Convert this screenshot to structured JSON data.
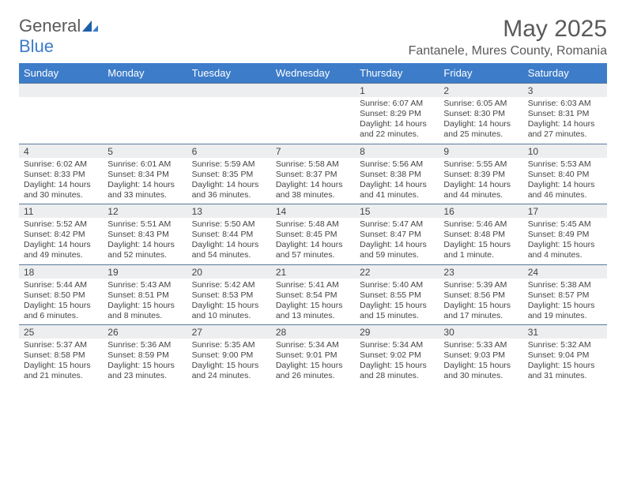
{
  "brand": {
    "name_part1": "General",
    "name_part2": "Blue"
  },
  "title": "May 2025",
  "location": "Fantanele, Mures County, Romania",
  "day_names": [
    "Sunday",
    "Monday",
    "Tuesday",
    "Wednesday",
    "Thursday",
    "Friday",
    "Saturday"
  ],
  "colors": {
    "header_bg": "#3d7cc9",
    "header_text": "#ffffff",
    "band_bg": "#eceef0",
    "border": "#5a7a9a",
    "text": "#444444",
    "logo_gray": "#5a5a5a",
    "logo_blue": "#3d7cc9"
  },
  "fonts": {
    "title_size_pt": 22,
    "location_size_pt": 12,
    "header_size_pt": 10,
    "body_size_pt": 8
  },
  "weeks": [
    [
      {
        "day": "",
        "sunrise": "",
        "sunset": "",
        "daylight": ""
      },
      {
        "day": "",
        "sunrise": "",
        "sunset": "",
        "daylight": ""
      },
      {
        "day": "",
        "sunrise": "",
        "sunset": "",
        "daylight": ""
      },
      {
        "day": "",
        "sunrise": "",
        "sunset": "",
        "daylight": ""
      },
      {
        "day": "1",
        "sunrise": "Sunrise: 6:07 AM",
        "sunset": "Sunset: 8:29 PM",
        "daylight": "Daylight: 14 hours and 22 minutes."
      },
      {
        "day": "2",
        "sunrise": "Sunrise: 6:05 AM",
        "sunset": "Sunset: 8:30 PM",
        "daylight": "Daylight: 14 hours and 25 minutes."
      },
      {
        "day": "3",
        "sunrise": "Sunrise: 6:03 AM",
        "sunset": "Sunset: 8:31 PM",
        "daylight": "Daylight: 14 hours and 27 minutes."
      }
    ],
    [
      {
        "day": "4",
        "sunrise": "Sunrise: 6:02 AM",
        "sunset": "Sunset: 8:33 PM",
        "daylight": "Daylight: 14 hours and 30 minutes."
      },
      {
        "day": "5",
        "sunrise": "Sunrise: 6:01 AM",
        "sunset": "Sunset: 8:34 PM",
        "daylight": "Daylight: 14 hours and 33 minutes."
      },
      {
        "day": "6",
        "sunrise": "Sunrise: 5:59 AM",
        "sunset": "Sunset: 8:35 PM",
        "daylight": "Daylight: 14 hours and 36 minutes."
      },
      {
        "day": "7",
        "sunrise": "Sunrise: 5:58 AM",
        "sunset": "Sunset: 8:37 PM",
        "daylight": "Daylight: 14 hours and 38 minutes."
      },
      {
        "day": "8",
        "sunrise": "Sunrise: 5:56 AM",
        "sunset": "Sunset: 8:38 PM",
        "daylight": "Daylight: 14 hours and 41 minutes."
      },
      {
        "day": "9",
        "sunrise": "Sunrise: 5:55 AM",
        "sunset": "Sunset: 8:39 PM",
        "daylight": "Daylight: 14 hours and 44 minutes."
      },
      {
        "day": "10",
        "sunrise": "Sunrise: 5:53 AM",
        "sunset": "Sunset: 8:40 PM",
        "daylight": "Daylight: 14 hours and 46 minutes."
      }
    ],
    [
      {
        "day": "11",
        "sunrise": "Sunrise: 5:52 AM",
        "sunset": "Sunset: 8:42 PM",
        "daylight": "Daylight: 14 hours and 49 minutes."
      },
      {
        "day": "12",
        "sunrise": "Sunrise: 5:51 AM",
        "sunset": "Sunset: 8:43 PM",
        "daylight": "Daylight: 14 hours and 52 minutes."
      },
      {
        "day": "13",
        "sunrise": "Sunrise: 5:50 AM",
        "sunset": "Sunset: 8:44 PM",
        "daylight": "Daylight: 14 hours and 54 minutes."
      },
      {
        "day": "14",
        "sunrise": "Sunrise: 5:48 AM",
        "sunset": "Sunset: 8:45 PM",
        "daylight": "Daylight: 14 hours and 57 minutes."
      },
      {
        "day": "15",
        "sunrise": "Sunrise: 5:47 AM",
        "sunset": "Sunset: 8:47 PM",
        "daylight": "Daylight: 14 hours and 59 minutes."
      },
      {
        "day": "16",
        "sunrise": "Sunrise: 5:46 AM",
        "sunset": "Sunset: 8:48 PM",
        "daylight": "Daylight: 15 hours and 1 minute."
      },
      {
        "day": "17",
        "sunrise": "Sunrise: 5:45 AM",
        "sunset": "Sunset: 8:49 PM",
        "daylight": "Daylight: 15 hours and 4 minutes."
      }
    ],
    [
      {
        "day": "18",
        "sunrise": "Sunrise: 5:44 AM",
        "sunset": "Sunset: 8:50 PM",
        "daylight": "Daylight: 15 hours and 6 minutes."
      },
      {
        "day": "19",
        "sunrise": "Sunrise: 5:43 AM",
        "sunset": "Sunset: 8:51 PM",
        "daylight": "Daylight: 15 hours and 8 minutes."
      },
      {
        "day": "20",
        "sunrise": "Sunrise: 5:42 AM",
        "sunset": "Sunset: 8:53 PM",
        "daylight": "Daylight: 15 hours and 10 minutes."
      },
      {
        "day": "21",
        "sunrise": "Sunrise: 5:41 AM",
        "sunset": "Sunset: 8:54 PM",
        "daylight": "Daylight: 15 hours and 13 minutes."
      },
      {
        "day": "22",
        "sunrise": "Sunrise: 5:40 AM",
        "sunset": "Sunset: 8:55 PM",
        "daylight": "Daylight: 15 hours and 15 minutes."
      },
      {
        "day": "23",
        "sunrise": "Sunrise: 5:39 AM",
        "sunset": "Sunset: 8:56 PM",
        "daylight": "Daylight: 15 hours and 17 minutes."
      },
      {
        "day": "24",
        "sunrise": "Sunrise: 5:38 AM",
        "sunset": "Sunset: 8:57 PM",
        "daylight": "Daylight: 15 hours and 19 minutes."
      }
    ],
    [
      {
        "day": "25",
        "sunrise": "Sunrise: 5:37 AM",
        "sunset": "Sunset: 8:58 PM",
        "daylight": "Daylight: 15 hours and 21 minutes."
      },
      {
        "day": "26",
        "sunrise": "Sunrise: 5:36 AM",
        "sunset": "Sunset: 8:59 PM",
        "daylight": "Daylight: 15 hours and 23 minutes."
      },
      {
        "day": "27",
        "sunrise": "Sunrise: 5:35 AM",
        "sunset": "Sunset: 9:00 PM",
        "daylight": "Daylight: 15 hours and 24 minutes."
      },
      {
        "day": "28",
        "sunrise": "Sunrise: 5:34 AM",
        "sunset": "Sunset: 9:01 PM",
        "daylight": "Daylight: 15 hours and 26 minutes."
      },
      {
        "day": "29",
        "sunrise": "Sunrise: 5:34 AM",
        "sunset": "Sunset: 9:02 PM",
        "daylight": "Daylight: 15 hours and 28 minutes."
      },
      {
        "day": "30",
        "sunrise": "Sunrise: 5:33 AM",
        "sunset": "Sunset: 9:03 PM",
        "daylight": "Daylight: 15 hours and 30 minutes."
      },
      {
        "day": "31",
        "sunrise": "Sunrise: 5:32 AM",
        "sunset": "Sunset: 9:04 PM",
        "daylight": "Daylight: 15 hours and 31 minutes."
      }
    ]
  ]
}
